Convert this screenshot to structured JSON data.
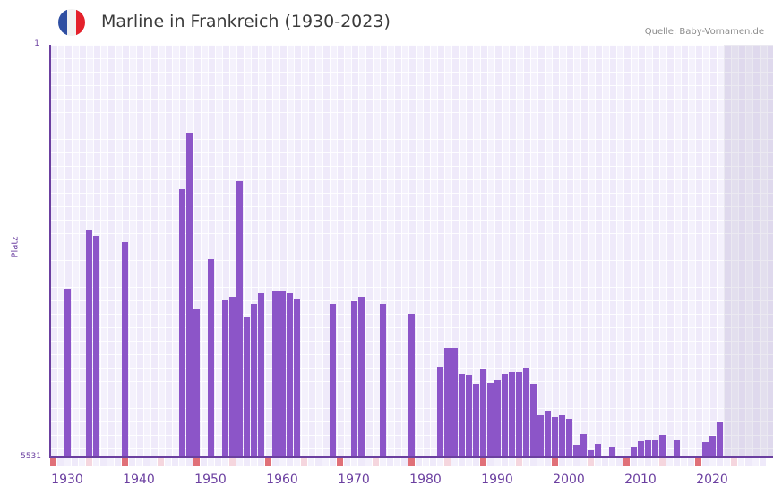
{
  "header": {
    "flag_icon": "france-flag-icon",
    "title": "Marline in Frankreich (1930-2023)",
    "source": "Quelle: Baby-Vornamen.de"
  },
  "colors": {
    "bar": "#8c55c8",
    "axis": "#6b3fa0",
    "decade_marker": "#e07078",
    "half_decade_marker": "#f5d6de",
    "flag_blue": "#2f4fa2",
    "flag_white": "#f2f2f2",
    "flag_red": "#e4212b"
  },
  "chart_data": {
    "type": "bar",
    "title": "Marline in Frankreich (1930-2023)",
    "xlabel": "",
    "ylabel": "Platz",
    "ylim": [
      5531,
      1
    ],
    "y_inverted": true,
    "y_ticks": [
      "1",
      "5531"
    ],
    "x_ticks": [
      "1930",
      "1940",
      "1950",
      "1960",
      "1970",
      "1980",
      "1990",
      "2000",
      "2010",
      "2020"
    ],
    "x_range": [
      1928,
      2028
    ],
    "future_shaded_from": 2022,
    "grid": true,
    "legend": null,
    "years": [
      1930,
      1933,
      1934,
      1938,
      1946,
      1947,
      1948,
      1950,
      1952,
      1953,
      1954,
      1955,
      1956,
      1957,
      1959,
      1960,
      1961,
      1962,
      1967,
      1970,
      1971,
      1974,
      1978,
      1982,
      1983,
      1984,
      1985,
      1986,
      1987,
      1988,
      1989,
      1990,
      1991,
      1992,
      1993,
      1994,
      1995,
      1996,
      1997,
      1998,
      1999,
      2000,
      2001,
      2002,
      2003,
      2004,
      2006,
      2007,
      2009,
      2010,
      2011,
      2012,
      2013,
      2015,
      2017,
      2019,
      2020,
      2021
    ],
    "ranks": [
      3275,
      2490,
      2560,
      2640,
      1940,
      1180,
      3550,
      2870,
      3410,
      3380,
      1830,
      3640,
      3480,
      3330,
      3290,
      3290,
      3330,
      3400,
      3480,
      3440,
      3380,
      3480,
      3610,
      4320,
      4060,
      4070,
      4410,
      4420,
      4550,
      4340,
      4530,
      4500,
      4410,
      4390,
      4390,
      4330,
      4550,
      4960,
      4900,
      4990,
      4960,
      5010,
      5360,
      5220,
      5430,
      5350,
      5390,
      5520,
      5390,
      5310,
      5300,
      5300,
      5230,
      5300,
      5520,
      5330,
      5240,
      5060
    ],
    "values_note": "Rank positions (lower = more popular); bars drawn downward-from-top scale, height proportional to (5531 - rank)"
  }
}
